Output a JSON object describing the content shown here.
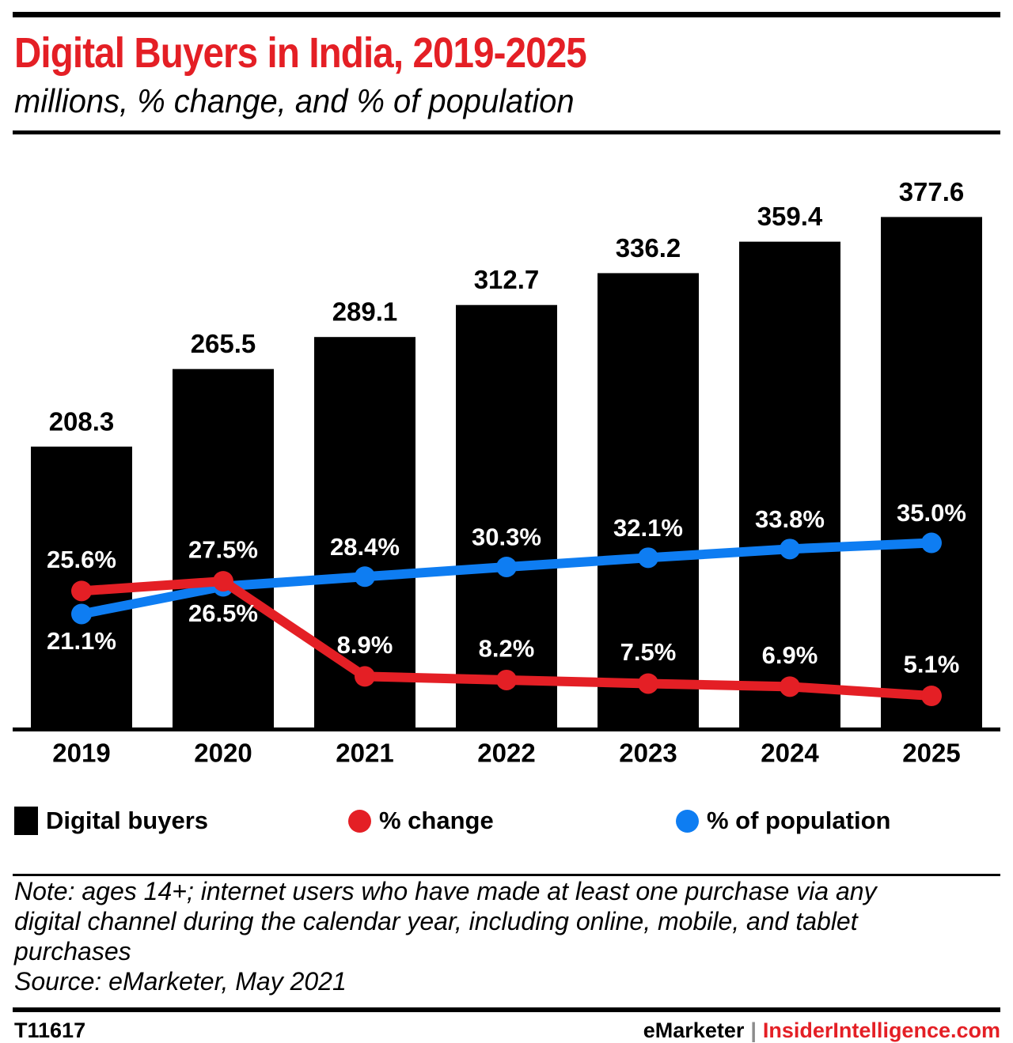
{
  "header": {
    "title": "Digital Buyers in India, 2019-2025",
    "subtitle": "millions, % change, and % of population"
  },
  "colors": {
    "accent_red": "#e41f25",
    "line_blue": "#0e7df2",
    "bar_black": "#000000",
    "label_white": "#ffffff",
    "separator_gray": "#8c8c8c"
  },
  "chart_data": {
    "type": "bar+line combo",
    "title": "Digital Buyers in India, 2019-2025",
    "subtitle": "millions, % change, and % of population",
    "categories": [
      "2019",
      "2020",
      "2021",
      "2022",
      "2023",
      "2024",
      "2025"
    ],
    "series": [
      {
        "name": "Digital buyers",
        "type": "bar",
        "unit": "millions",
        "color": "#000000",
        "values": [
          208.3,
          265.5,
          289.1,
          312.7,
          336.2,
          359.4,
          377.6
        ],
        "labels": [
          "208.3",
          "265.5",
          "289.1",
          "312.7",
          "336.2",
          "359.4",
          "377.6"
        ]
      },
      {
        "name": "% change",
        "type": "line",
        "color": "#e41f25",
        "values": [
          25.6,
          27.5,
          8.9,
          8.2,
          7.5,
          6.9,
          5.1
        ],
        "labels": [
          "25.6%",
          "27.5%",
          "8.9%",
          "8.2%",
          "7.5%",
          "6.9%",
          "5.1%"
        ],
        "label_side": [
          "above",
          "above",
          "above",
          "above",
          "above",
          "above",
          "above"
        ]
      },
      {
        "name": "% of population",
        "type": "line",
        "color": "#0e7df2",
        "values": [
          21.1,
          26.5,
          28.4,
          30.3,
          32.1,
          33.8,
          35.0
        ],
        "labels": [
          "21.1%",
          "26.5%",
          "28.4%",
          "30.3%",
          "32.1%",
          "33.8%",
          "35.0%"
        ],
        "label_side": [
          "below",
          "below",
          "above",
          "above",
          "above",
          "above",
          "above"
        ]
      }
    ],
    "grid": false,
    "value_axis_visible": false,
    "legend_position": "bottom"
  },
  "legend": [
    {
      "label": "Digital buyers",
      "swatch": "square",
      "color": "#000000"
    },
    {
      "label": "% change",
      "swatch": "circle",
      "color": "#e41f25"
    },
    {
      "label": "% of population",
      "swatch": "circle",
      "color": "#0e7df2"
    }
  ],
  "note": {
    "lines": [
      "Note: ages 14+; internet users who have made at least one purchase via any",
      "digital channel during the calendar year, including online, mobile, and tablet",
      "purchases"
    ],
    "source": "Source: eMarketer, May 2021"
  },
  "footer": {
    "chart_id": "T11617",
    "brand": "eMarketer",
    "separator": "|",
    "site": "InsiderIntelligence.com"
  }
}
